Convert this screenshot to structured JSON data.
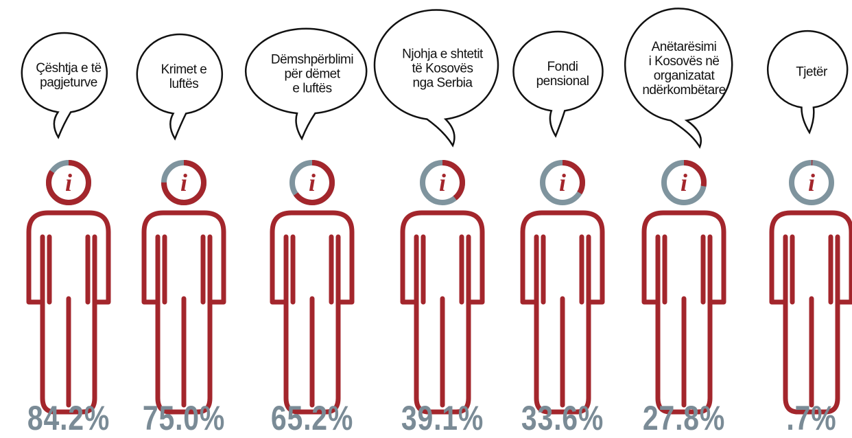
{
  "chart_data": {
    "type": "pictogram",
    "categories": [
      "Çështja e të\npagjeturve",
      "Krimet e\nluftës",
      "Dëmshpërblimi\npër dëmet\ne luftës",
      "Njohja e shtetit\ntë Kosovës\nnga Serbia",
      "Fondi\npensional",
      "Anëtarësimi\ni Kosovës në\norganizatat\nndërkombëtare",
      "Tjetër"
    ],
    "values": [
      84.2,
      75.0,
      65.2,
      39.1,
      33.6,
      27.8,
      0.7
    ],
    "value_labels": [
      "84.2%",
      "75.0%",
      "65.2%",
      "39.1%",
      "33.6%",
      "27.8%",
      ".7%"
    ],
    "ylim": [
      0,
      100
    ],
    "color": "#a3262c",
    "rest_color": "#7f949e",
    "label_color": "#7a8b96"
  }
}
